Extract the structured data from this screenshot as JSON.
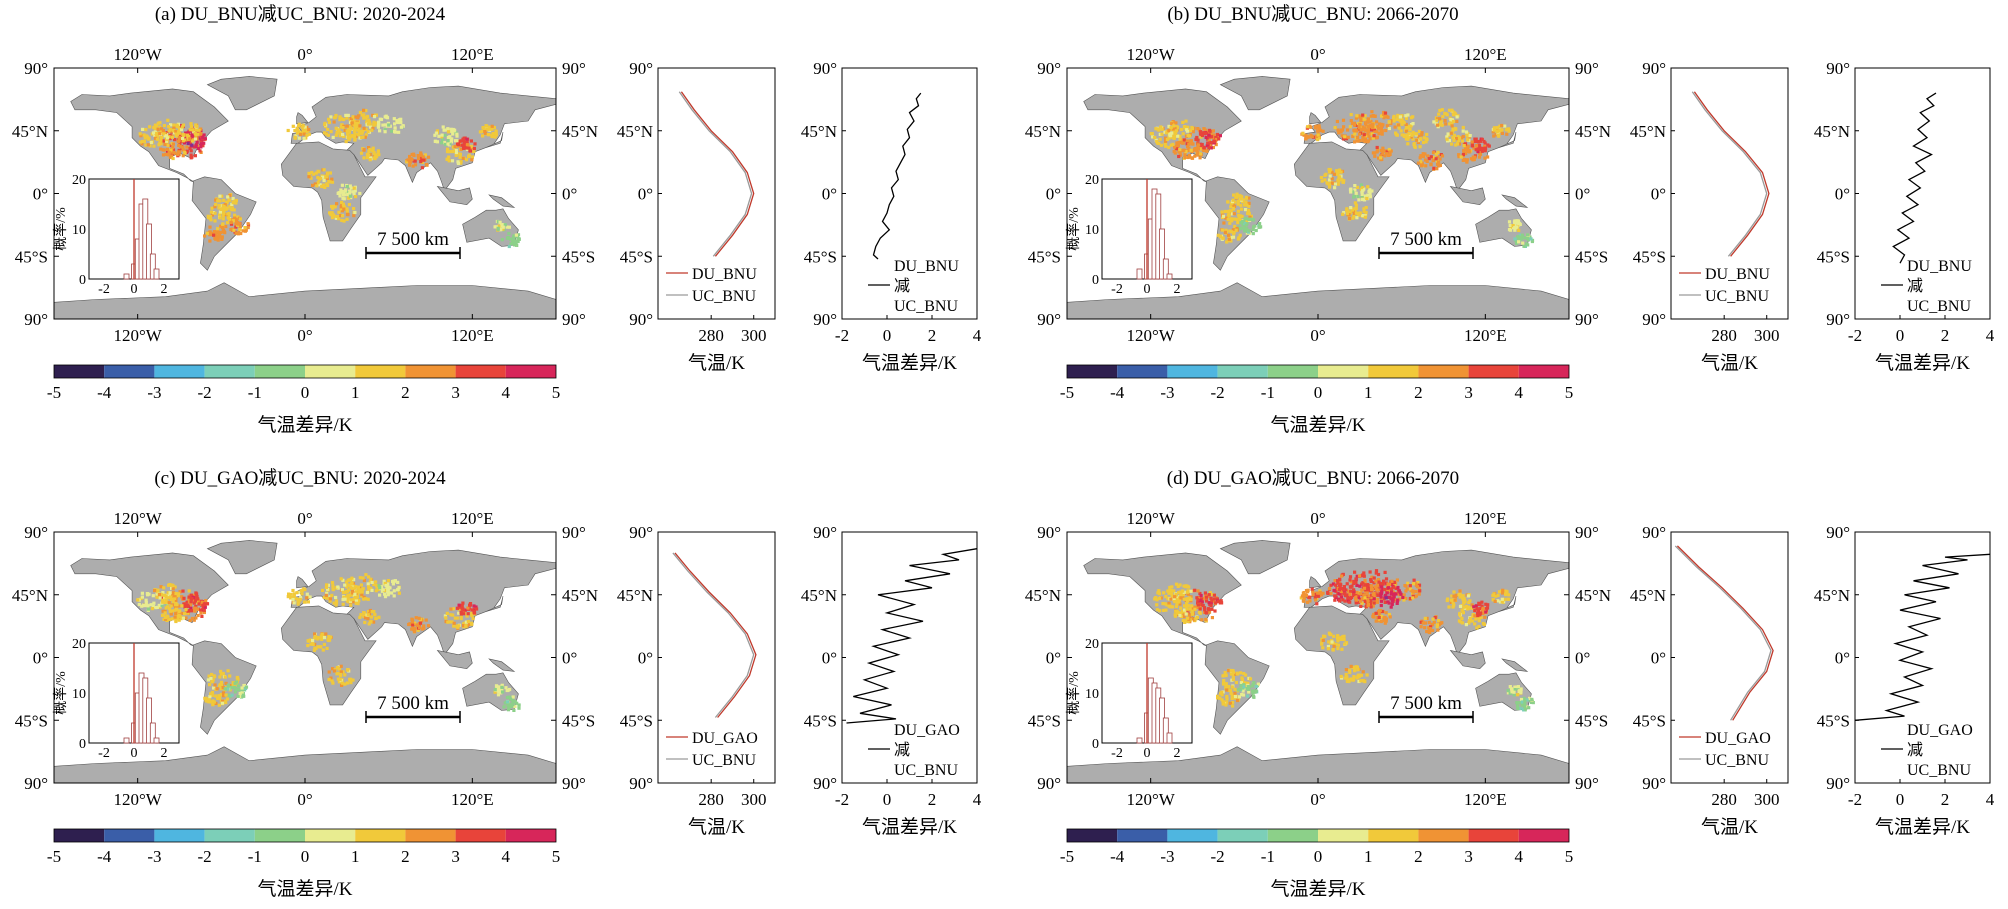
{
  "figure": {
    "map": {
      "lon_ticks": [
        "120°W",
        "0°",
        "120°E"
      ],
      "lat_ticks": [
        "90°",
        "45°N",
        "0°",
        "45°S",
        "90°"
      ],
      "scale_bar": "7 500 km"
    },
    "colorbar": {
      "label": "气温差异/K",
      "ticks": [
        "-5",
        "-4",
        "-3",
        "-2",
        "-1",
        "0",
        "1",
        "2",
        "3",
        "4",
        "5"
      ],
      "colors": [
        "#2e1f4f",
        "#3a5ea8",
        "#4fb6e0",
        "#7ccfb8",
        "#8cd089",
        "#e8ec90",
        "#f1c93a",
        "#f09334",
        "#e8443a",
        "#d7265a",
        "#8a2d8f"
      ]
    },
    "inset": {
      "ylabel": "概率/%",
      "yticks": [
        "20",
        "10",
        "0"
      ],
      "xticks": [
        "-2",
        "0",
        "2"
      ]
    },
    "temp_panel": {
      "xlabel": "气温/K",
      "xticks": [
        "280",
        "300"
      ],
      "lat_ticks": [
        "90°",
        "45°N",
        "0°",
        "45°S",
        "90°"
      ]
    },
    "diff_panel": {
      "xlabel": "气温差异/K",
      "xticks": [
        "-2",
        "0",
        "2",
        "4"
      ],
      "lat_ticks": [
        "90°",
        "45°N",
        "0°",
        "45°S",
        "90°"
      ]
    },
    "colors": {
      "red_line": "#c0392b",
      "gray_line": "#9a9a9a",
      "land": "#adadad"
    }
  },
  "chart_data": [
    {
      "type": "scatter",
      "title": "(a) DU_BNU减UC_BNU: 2020-2024",
      "legend_temp": [
        "DU_BNU",
        "UC_BNU"
      ],
      "legend_diff": [
        "DU_BNU",
        "减",
        "UC_BNU"
      ],
      "histogram": {
        "x": [
          -0.5,
          0,
          0.25,
          0.5,
          0.75,
          1,
          1.25,
          1.5
        ],
        "y": [
          1,
          3,
          8,
          15,
          16,
          11,
          5,
          2
        ]
      },
      "zonal_temp_du": [
        [
          266,
          73
        ],
        [
          272,
          60
        ],
        [
          280,
          45
        ],
        [
          290,
          30
        ],
        [
          297,
          15
        ],
        [
          300,
          0
        ],
        [
          297,
          -15
        ],
        [
          290,
          -30
        ],
        [
          282,
          -45
        ]
      ],
      "zonal_temp_uc": [
        [
          265,
          73
        ],
        [
          271,
          60
        ],
        [
          279,
          45
        ],
        [
          289,
          30
        ],
        [
          296,
          15
        ],
        [
          299,
          0
        ],
        [
          296,
          -15
        ],
        [
          289,
          -30
        ],
        [
          281,
          -45
        ]
      ],
      "zonal_diff": [
        [
          1.5,
          72
        ],
        [
          1.3,
          68
        ],
        [
          1.4,
          63
        ],
        [
          1.0,
          58
        ],
        [
          1.2,
          52
        ],
        [
          0.9,
          46
        ],
        [
          1.0,
          40
        ],
        [
          0.7,
          34
        ],
        [
          0.8,
          28
        ],
        [
          0.6,
          22
        ],
        [
          0.4,
          16
        ],
        [
          0.5,
          10
        ],
        [
          0.2,
          4
        ],
        [
          0.3,
          -2
        ],
        [
          0.1,
          -8
        ],
        [
          0.0,
          -14
        ],
        [
          -0.2,
          -20
        ],
        [
          0.1,
          -26
        ],
        [
          -0.3,
          -32
        ],
        [
          -0.5,
          -38
        ],
        [
          -0.6,
          -44
        ],
        [
          -0.4,
          -47
        ]
      ]
    },
    {
      "type": "scatter",
      "title": "(b) DU_BNU减UC_BNU: 2066-2070",
      "legend_temp": [
        "DU_BNU",
        "UC_BNU"
      ],
      "legend_diff": [
        "DU_BNU",
        "减",
        "UC_BNU"
      ],
      "histogram": {
        "x": [
          -0.5,
          0,
          0.25,
          0.5,
          0.75,
          1,
          1.25,
          1.5
        ],
        "y": [
          2,
          5,
          12,
          18,
          17,
          10,
          4,
          1
        ]
      },
      "zonal_temp_du": [
        [
          266,
          73
        ],
        [
          272,
          60
        ],
        [
          280,
          45
        ],
        [
          290,
          30
        ],
        [
          298,
          15
        ],
        [
          301,
          0
        ],
        [
          298,
          -15
        ],
        [
          291,
          -30
        ],
        [
          283,
          -45
        ]
      ],
      "zonal_temp_uc": [
        [
          265,
          73
        ],
        [
          271,
          60
        ],
        [
          279,
          45
        ],
        [
          289,
          30
        ],
        [
          297,
          15
        ],
        [
          300,
          0
        ],
        [
          297,
          -15
        ],
        [
          290,
          -30
        ],
        [
          282,
          -45
        ]
      ],
      "zonal_diff": [
        [
          1.6,
          72
        ],
        [
          1.2,
          68
        ],
        [
          1.5,
          63
        ],
        [
          0.9,
          58
        ],
        [
          1.3,
          52
        ],
        [
          0.8,
          46
        ],
        [
          1.2,
          40
        ],
        [
          0.6,
          34
        ],
        [
          1.4,
          28
        ],
        [
          0.7,
          22
        ],
        [
          1.1,
          16
        ],
        [
          0.4,
          10
        ],
        [
          0.9,
          4
        ],
        [
          0.3,
          -2
        ],
        [
          0.8,
          -8
        ],
        [
          0.1,
          -14
        ],
        [
          0.6,
          -20
        ],
        [
          -0.1,
          -26
        ],
        [
          0.4,
          -32
        ],
        [
          -0.3,
          -38
        ],
        [
          0.2,
          -44
        ],
        [
          0.0,
          -50
        ]
      ]
    },
    {
      "type": "scatter",
      "title": "(c) DU_GAO减UC_BNU: 2020-2024",
      "legend_temp": [
        "DU_GAO",
        "UC_BNU"
      ],
      "legend_diff": [
        "DU_GAO",
        "减",
        "UC_BNU"
      ],
      "histogram": {
        "x": [
          -0.5,
          0,
          0.25,
          0.5,
          0.75,
          1,
          1.25,
          1.5
        ],
        "y": [
          1,
          4,
          10,
          14,
          13,
          9,
          4,
          1
        ]
      },
      "zonal_temp_du": [
        [
          263,
          75
        ],
        [
          270,
          62
        ],
        [
          279,
          47
        ],
        [
          289,
          32
        ],
        [
          297,
          17
        ],
        [
          301,
          2
        ],
        [
          298,
          -13
        ],
        [
          291,
          -28
        ],
        [
          283,
          -43
        ]
      ],
      "zonal_temp_uc": [
        [
          262,
          75
        ],
        [
          269,
          62
        ],
        [
          278,
          47
        ],
        [
          288,
          32
        ],
        [
          296,
          17
        ],
        [
          300,
          2
        ],
        [
          297,
          -13
        ],
        [
          290,
          -28
        ],
        [
          282,
          -43
        ]
      ],
      "zonal_diff": [
        [
          4.0,
          78
        ],
        [
          2.5,
          74
        ],
        [
          3.2,
          70
        ],
        [
          1.0,
          66
        ],
        [
          2.8,
          60
        ],
        [
          0.8,
          55
        ],
        [
          2.0,
          50
        ],
        [
          -0.4,
          45
        ],
        [
          1.2,
          38
        ],
        [
          0.0,
          32
        ],
        [
          1.6,
          26
        ],
        [
          -0.2,
          20
        ],
        [
          1.0,
          14
        ],
        [
          -0.6,
          8
        ],
        [
          0.5,
          2
        ],
        [
          -0.8,
          -4
        ],
        [
          0.3,
          -10
        ],
        [
          -1.0,
          -16
        ],
        [
          0.0,
          -22
        ],
        [
          -1.5,
          -28
        ],
        [
          0.2,
          -34
        ],
        [
          -1.2,
          -40
        ],
        [
          0.4,
          -44
        ],
        [
          -1.8,
          -47
        ]
      ]
    },
    {
      "type": "scatter",
      "title": "(d) DU_GAO减UC_BNU: 2066-2070",
      "legend_temp": [
        "DU_GAO",
        "UC_BNU"
      ],
      "legend_diff": [
        "DU_GAO",
        "减",
        "UC_BNU"
      ],
      "histogram": {
        "x": [
          -0.5,
          0,
          0.25,
          0.5,
          0.75,
          1,
          1.25,
          1.5
        ],
        "y": [
          1,
          6,
          13,
          12,
          11,
          9,
          5,
          2
        ]
      },
      "zonal_temp_du": [
        [
          258,
          80
        ],
        [
          268,
          65
        ],
        [
          279,
          50
        ],
        [
          289,
          35
        ],
        [
          298,
          20
        ],
        [
          303,
          5
        ],
        [
          300,
          -10
        ],
        [
          292,
          -25
        ],
        [
          284,
          -45
        ]
      ],
      "zonal_temp_uc": [
        [
          257,
          80
        ],
        [
          267,
          65
        ],
        [
          278,
          50
        ],
        [
          288,
          35
        ],
        [
          297,
          20
        ],
        [
          302,
          5
        ],
        [
          299,
          -10
        ],
        [
          291,
          -25
        ],
        [
          283,
          -45
        ]
      ],
      "zonal_diff": [
        [
          4.0,
          74
        ],
        [
          2.0,
          72
        ],
        [
          3.0,
          70
        ],
        [
          1.0,
          66
        ],
        [
          2.6,
          60
        ],
        [
          0.6,
          55
        ],
        [
          2.2,
          50
        ],
        [
          0.2,
          45
        ],
        [
          1.6,
          40
        ],
        [
          0.0,
          34
        ],
        [
          1.8,
          28
        ],
        [
          0.4,
          22
        ],
        [
          1.2,
          16
        ],
        [
          -0.2,
          10
        ],
        [
          1.0,
          4
        ],
        [
          0.0,
          -2
        ],
        [
          1.4,
          -8
        ],
        [
          0.2,
          -14
        ],
        [
          1.0,
          -20
        ],
        [
          -0.4,
          -26
        ],
        [
          0.8,
          -32
        ],
        [
          -0.6,
          -38
        ],
        [
          0.2,
          -42
        ],
        [
          -2.0,
          -45
        ]
      ]
    }
  ]
}
